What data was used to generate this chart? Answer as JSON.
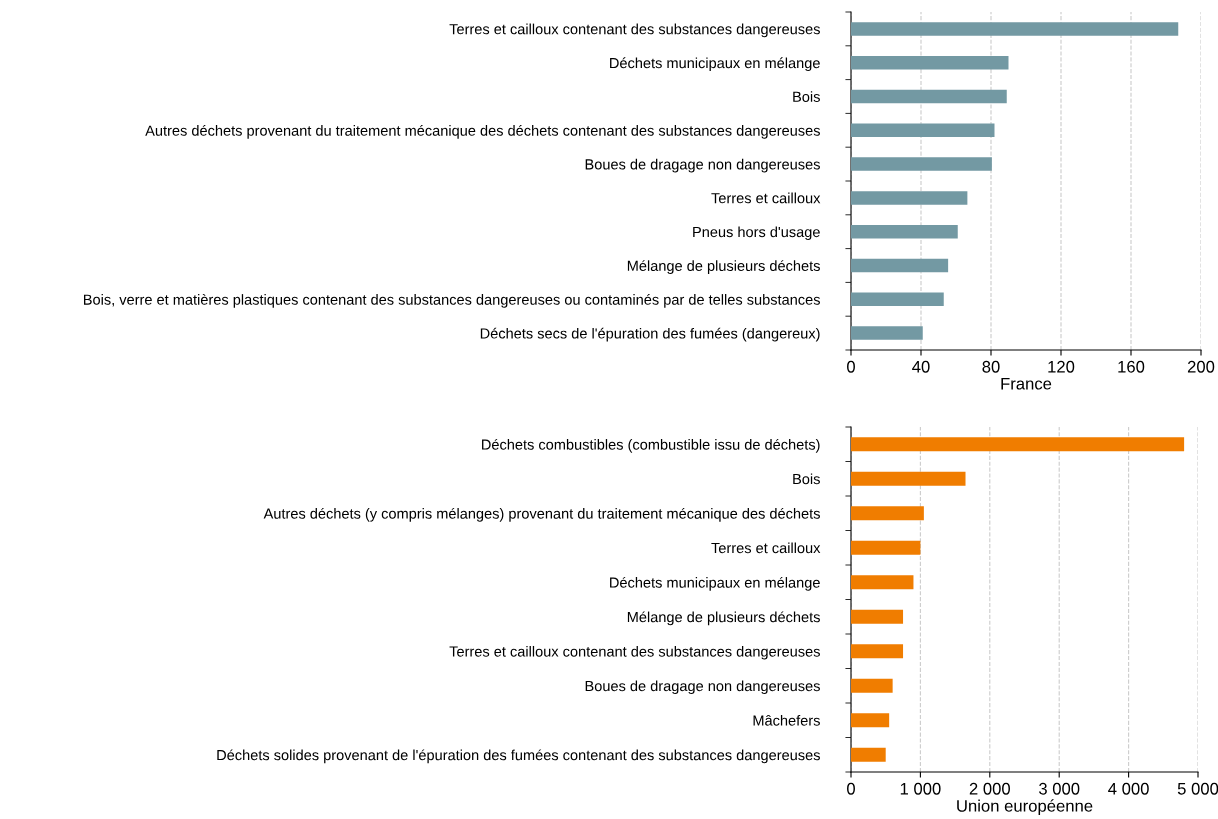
{
  "chart_data": [
    {
      "type": "bar",
      "orientation": "horizontal",
      "xlabel": "France",
      "color": "#7399a3",
      "categories": [
        "Terres et cailloux contenant des substances dangereuses",
        "Déchets municipaux en mélange",
        "Bois",
        "Autres déchets provenant du traitement mécanique des déchets contenant des substances dangereuses",
        "Boues de dragage non dangereuses",
        "Terres et cailloux",
        "Pneus hors d'usage",
        "Mélange de plusieurs déchets",
        "Bois, verre et matières plastiques contenant des substances dangereuses ou contaminés par de telles substances",
        "Déchets secs de l'épuration des fumées (dangereux)"
      ],
      "values": [
        187,
        90,
        89,
        82,
        80.5,
        66.5,
        61,
        55.5,
        53,
        41
      ],
      "xlim": [
        0,
        200
      ],
      "xticks": [
        0,
        40,
        80,
        120,
        160,
        200
      ],
      "grid": "x"
    },
    {
      "type": "bar",
      "orientation": "horizontal",
      "xlabel": "Union européenne",
      "color": "#f07d00",
      "categories": [
        "Déchets combustibles (combustible issu de déchets)",
        "Bois",
        "Autres déchets (y compris mélanges) provenant du traitement mécanique des déchets",
        "Terres et cailloux",
        "Déchets municipaux en mélange",
        "Mélange de plusieurs déchets",
        "Terres et cailloux contenant des substances dangereuses",
        "Boues de dragage non dangereuses",
        "Mâchefers",
        "Déchets solides provenant de l'épuration des fumées contenant des substances dangereuses"
      ],
      "values": [
        4800,
        1650,
        1050,
        1000,
        900,
        750,
        750,
        600,
        550,
        500
      ],
      "xlim": [
        0,
        5000
      ],
      "xticks": [
        0,
        {
          "value": 1000,
          "label": "1 000"
        },
        {
          "value": 2000,
          "label": "2 000"
        },
        {
          "value": 3000,
          "label": "3 000"
        },
        {
          "value": 4000,
          "label": "4 000"
        },
        {
          "value": 5000,
          "label": "5 000"
        }
      ],
      "grid": "x"
    }
  ]
}
